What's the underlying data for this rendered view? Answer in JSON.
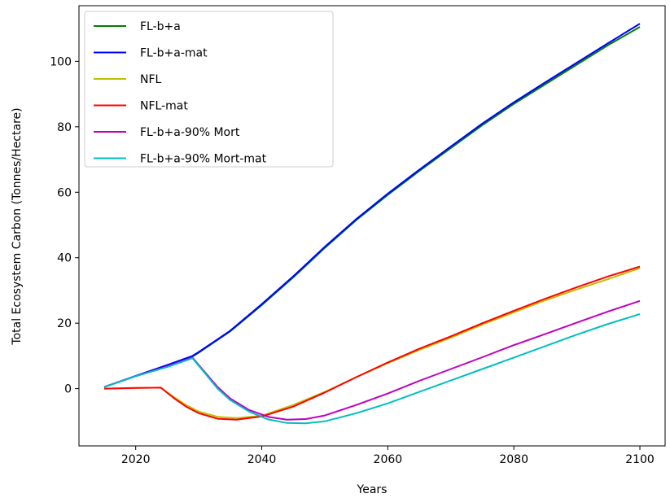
{
  "chart_data": {
    "type": "line",
    "xlabel": "Years",
    "ylabel": "Total Ecosystem Carbon (Tonnes/Hectare)",
    "xlim": [
      2011,
      2104
    ],
    "ylim": [
      -17.5,
      117
    ],
    "xticks": [
      2020,
      2040,
      2060,
      2080,
      2100
    ],
    "yticks": [
      0,
      20,
      40,
      60,
      80,
      100
    ],
    "grid": false,
    "legend_position": "top-left",
    "series": [
      {
        "name": "FL-b+a",
        "color": "#008000",
        "x": [
          2015,
          2020,
          2025,
          2029,
          2030,
          2035,
          2040,
          2045,
          2050,
          2055,
          2060,
          2065,
          2070,
          2075,
          2080,
          2085,
          2090,
          2095,
          2100
        ],
        "y": [
          0.5,
          3.8,
          7.0,
          9.8,
          11.0,
          17.5,
          25.5,
          34.0,
          43.0,
          51.5,
          59.2,
          66.5,
          73.5,
          80.5,
          87.0,
          93.0,
          99.0,
          105.0,
          110.5
        ]
      },
      {
        "name": "FL-b+a-mat",
        "color": "#0000ff",
        "x": [
          2015,
          2020,
          2025,
          2029,
          2030,
          2035,
          2040,
          2045,
          2050,
          2055,
          2060,
          2065,
          2070,
          2075,
          2080,
          2085,
          2090,
          2095,
          2100
        ],
        "y": [
          0.5,
          3.9,
          7.2,
          10.0,
          11.2,
          17.7,
          25.8,
          34.3,
          43.3,
          51.8,
          59.6,
          66.9,
          74.0,
          81.0,
          87.5,
          93.6,
          99.6,
          105.6,
          111.5
        ]
      },
      {
        "name": "NFL",
        "color": "#bfbf00",
        "x": [
          2015,
          2020,
          2024,
          2026,
          2028,
          2030,
          2033,
          2036,
          2040,
          2045,
          2050,
          2055,
          2060,
          2065,
          2070,
          2075,
          2080,
          2085,
          2090,
          2095,
          2100
        ],
        "y": [
          0.0,
          0.2,
          0.3,
          -2.5,
          -5.0,
          -7.0,
          -8.6,
          -9.0,
          -8.3,
          -5.0,
          -1.0,
          3.5,
          7.8,
          11.8,
          15.6,
          19.6,
          23.3,
          27.0,
          30.3,
          33.5,
          36.8
        ]
      },
      {
        "name": "NFL-mat",
        "color": "#ff0000",
        "x": [
          2015,
          2020,
          2024,
          2026,
          2028,
          2030,
          2033,
          2036,
          2040,
          2045,
          2050,
          2055,
          2060,
          2065,
          2070,
          2075,
          2080,
          2085,
          2090,
          2095,
          2100
        ],
        "y": [
          0.0,
          0.2,
          0.3,
          -2.8,
          -5.5,
          -7.5,
          -9.2,
          -9.5,
          -8.5,
          -5.5,
          -1.2,
          3.5,
          8.0,
          12.2,
          16.0,
          20.0,
          23.8,
          27.5,
          31.0,
          34.3,
          37.3
        ]
      },
      {
        "name": "FL-b+a-90% Mort",
        "color": "#bf00bf",
        "x": [
          2015,
          2020,
          2025,
          2029,
          2031,
          2033,
          2035,
          2038,
          2041,
          2044,
          2047,
          2050,
          2055,
          2060,
          2065,
          2070,
          2075,
          2080,
          2085,
          2090,
          2095,
          2100
        ],
        "y": [
          0.5,
          3.8,
          6.8,
          9.5,
          5.0,
          0.5,
          -3.0,
          -6.5,
          -8.6,
          -9.5,
          -9.3,
          -8.2,
          -5.0,
          -1.5,
          2.4,
          6.0,
          9.6,
          13.3,
          16.7,
          20.2,
          23.6,
          26.8
        ]
      },
      {
        "name": "FL-b+a-90% Mort-mat",
        "color": "#00bfbf",
        "x": [
          2015,
          2020,
          2025,
          2029,
          2031,
          2033,
          2035,
          2038,
          2041,
          2044,
          2047,
          2050,
          2055,
          2060,
          2065,
          2070,
          2075,
          2080,
          2085,
          2090,
          2095,
          2100
        ],
        "y": [
          0.5,
          3.8,
          6.6,
          9.3,
          4.7,
          0.0,
          -3.5,
          -7.0,
          -9.4,
          -10.5,
          -10.6,
          -10.0,
          -7.5,
          -4.5,
          -1.0,
          2.5,
          6.0,
          9.5,
          13.0,
          16.5,
          19.8,
          22.8
        ]
      }
    ]
  }
}
